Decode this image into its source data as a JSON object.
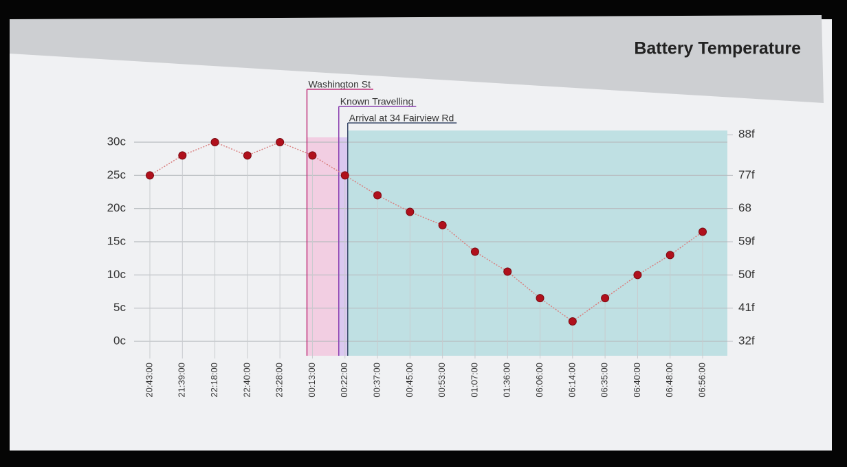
{
  "chart_data": {
    "type": "line",
    "title": "Battery Temperature",
    "categories": [
      "20:43:00",
      "21:39:00",
      "22:18:00",
      "22:40:00",
      "23:28:00",
      "00:13:00",
      "00:22:00",
      "00:37:00",
      "00:45:00",
      "00:53:00",
      "01:07:00",
      "01:36:00",
      "06:06:00",
      "06:14:00",
      "06:35:00",
      "06:40:00",
      "06:48:00",
      "06:56:00"
    ],
    "values": [
      25,
      28,
      30,
      28,
      30,
      28,
      25,
      22,
      19.5,
      17.5,
      13.5,
      10.5,
      6.5,
      3,
      6.5,
      10,
      13,
      16.5
    ],
    "color": "#b0101c",
    "line_color": "#d98080",
    "ylim": [
      0,
      30
    ],
    "yticks": [
      {
        "value": 0,
        "label": "0c"
      },
      {
        "value": 5,
        "label": "5c"
      },
      {
        "value": 10,
        "label": "10c"
      },
      {
        "value": 15,
        "label": "15c"
      },
      {
        "value": 20,
        "label": "20c"
      },
      {
        "value": 25,
        "label": "25c"
      },
      {
        "value": 30,
        "label": "30c"
      }
    ],
    "y2lim": [
      32,
      86
    ],
    "y2ticks": [
      {
        "value": 32,
        "label": "32f"
      },
      {
        "value": 41,
        "label": "41f"
      },
      {
        "value": 50,
        "label": "50f"
      },
      {
        "value": 59,
        "label": "59f"
      },
      68,
      {
        "value": 77,
        "label": "77f"
      },
      {
        "value": 88,
        "label": "88f"
      }
    ],
    "grid": true,
    "annotations": [
      {
        "label": "Washington St",
        "x": "00:13:00",
        "color": "#c0307a"
      },
      {
        "label": "Known Travelling",
        "x": "00:22:00",
        "color": "#8a3fb0"
      },
      {
        "label": "Arrival at 34 Fairview Rd",
        "x": "00:22:00",
        "color": "#3a4a6a"
      }
    ],
    "shade_color": "#bfe0e3"
  }
}
